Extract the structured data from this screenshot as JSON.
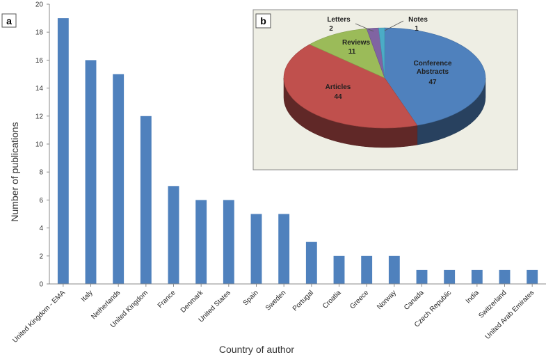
{
  "chart_data": [
    {
      "panel": "a",
      "type": "bar",
      "xlabel": "Country of author",
      "ylabel": "Number of publications",
      "ylim": [
        0,
        20
      ],
      "yticks": [
        0,
        2,
        4,
        6,
        8,
        10,
        12,
        14,
        16,
        18,
        20
      ],
      "grid": false,
      "bar_color": "#4f81bd",
      "categories": [
        "United Kingdom - EMA",
        "Italy",
        "Netherlands",
        "United Kingdom",
        "France",
        "Denmark",
        "United States",
        "Spain",
        "Sweden",
        "Portugal",
        "Croatia",
        "Greece",
        "Norway",
        "Canada",
        "Czech Republic",
        "India",
        "Switzerland",
        "United Arab Emirates"
      ],
      "values": [
        19,
        16,
        15,
        12,
        7,
        6,
        6,
        5,
        5,
        3,
        2,
        2,
        2,
        1,
        1,
        1,
        1,
        1
      ]
    },
    {
      "panel": "b",
      "type": "pie",
      "style": "3d",
      "background": "#eeeee4",
      "slices": [
        {
          "name": "Conference Abstracts",
          "line1": "Conference",
          "line2": "Abstracts",
          "value": 47,
          "color": "#4f81bd"
        },
        {
          "name": "Articles",
          "line1": "Articles",
          "line2": "",
          "value": 44,
          "color": "#c0504d"
        },
        {
          "name": "Reviews",
          "line1": "Reviews",
          "line2": "",
          "value": 11,
          "color": "#9bbb59"
        },
        {
          "name": "Letters",
          "line1": "Letters",
          "line2": "",
          "value": 2,
          "color": "#8064a2"
        },
        {
          "name": "Notes",
          "line1": "Notes",
          "line2": "",
          "value": 1,
          "color": "#4bacc6"
        }
      ]
    }
  ]
}
